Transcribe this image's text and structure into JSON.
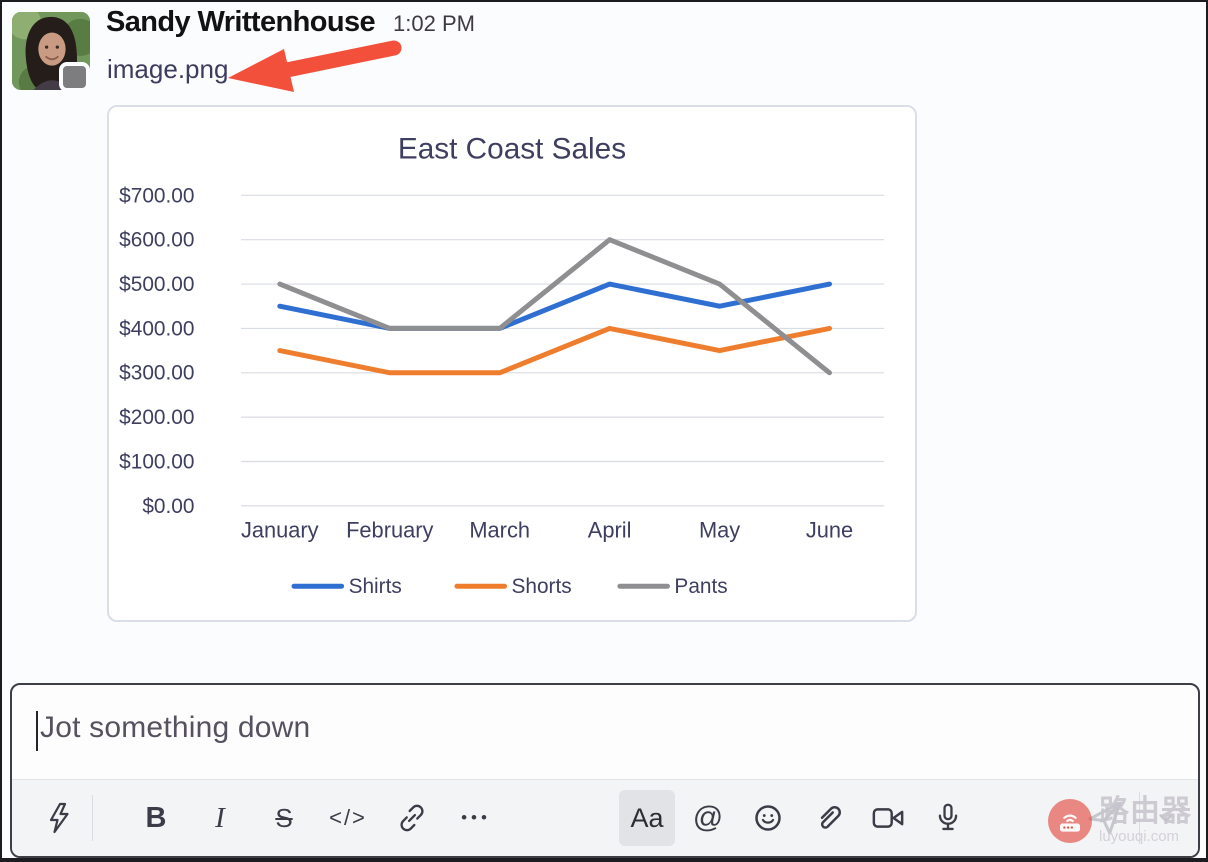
{
  "message": {
    "author": "Sandy Writtenhouse",
    "timestamp": "1:02 PM",
    "attachment": {
      "filename": "image.png"
    }
  },
  "annotation": {
    "arrow_color": "#f2503a",
    "arrow_points_at": "image.png"
  },
  "chart_data": {
    "type": "line",
    "title": "East Coast Sales",
    "xlabel": "",
    "ylabel": "",
    "categories": [
      "January",
      "February",
      "March",
      "April",
      "May",
      "June"
    ],
    "series": [
      {
        "name": "Shirts",
        "color": "#2f6fd2",
        "values": [
          450,
          400,
          400,
          500,
          450,
          500
        ]
      },
      {
        "name": "Shorts",
        "color": "#ee7e2e",
        "values": [
          350,
          300,
          300,
          400,
          350,
          400
        ]
      },
      {
        "name": "Pants",
        "color": "#8f8f92",
        "values": [
          500,
          400,
          400,
          600,
          500,
          300
        ]
      }
    ],
    "ylim": [
      0,
      700
    ],
    "ytick_labels": [
      "$700.00",
      "$600.00",
      "$500.00",
      "$400.00",
      "$300.00",
      "$200.00",
      "$100.00",
      "$0.00"
    ],
    "grid": true,
    "legend_position": "bottom",
    "text_color": "#3e3e60",
    "gridline_color": "#d8dce3"
  },
  "composer": {
    "placeholder": "Jot something down",
    "toolbar": {
      "shortcuts": {
        "icon": "lightning-icon"
      },
      "bold": {
        "label": "B"
      },
      "italic": {
        "label": "I"
      },
      "strikethrough": {
        "label": "S"
      },
      "code": {
        "label": "</>"
      },
      "link": {
        "icon": "link-icon"
      },
      "more_formatting": {
        "label": "•••"
      },
      "formatting_toggle": {
        "label": "Aa",
        "active": true
      },
      "mention": {
        "label": "@"
      },
      "emoji": {
        "icon": "smiley-icon"
      },
      "attach": {
        "icon": "paperclip-icon"
      },
      "video": {
        "icon": "video-camera-icon"
      },
      "audio": {
        "icon": "microphone-icon"
      },
      "send": {
        "icon": "send-plane-icon",
        "disabled": true
      },
      "schedule_send": {
        "icon": "chevron-down-icon",
        "disabled": true
      }
    }
  },
  "watermark": {
    "brand": "路由器",
    "domain": "luyouqi.com"
  }
}
